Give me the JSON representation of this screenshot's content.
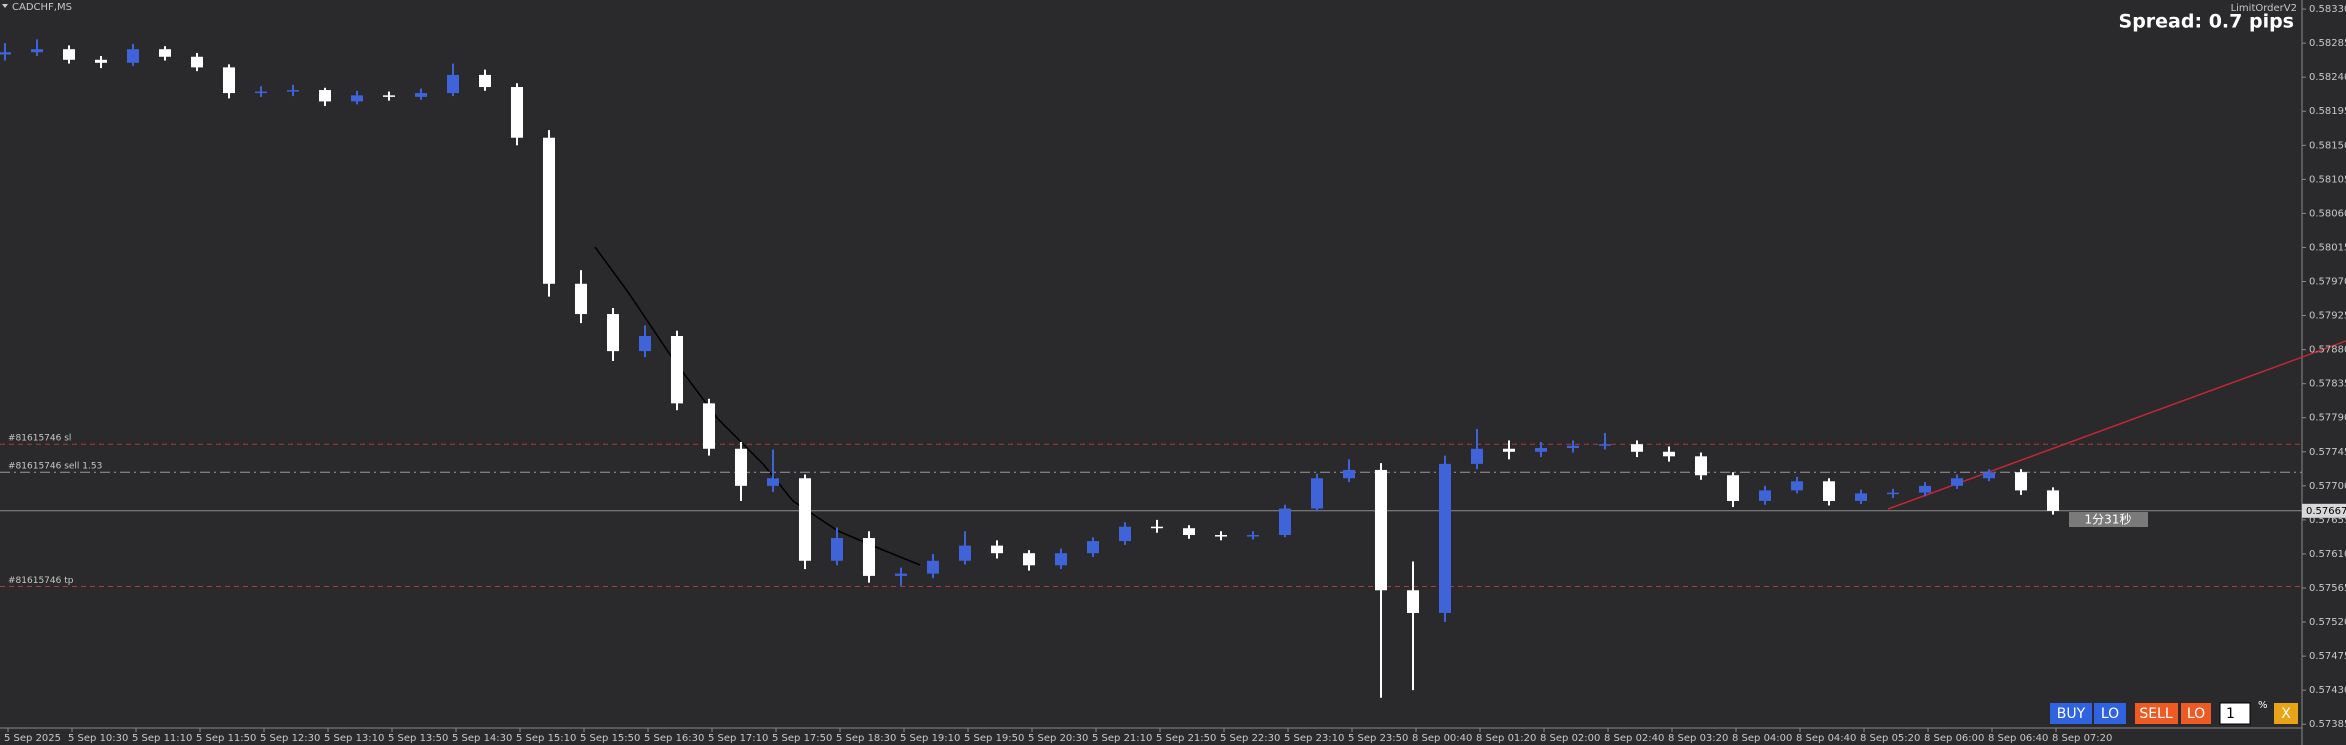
{
  "chart_data": {
    "type": "candlestick",
    "symbol": "CADCHF,MS",
    "candles": [
      [
        0.5827,
        0.58285,
        0.58262,
        0.58273
      ],
      [
        0.58273,
        0.5829,
        0.58268,
        0.58277
      ],
      [
        0.58277,
        0.58282,
        0.58258,
        0.58263
      ],
      [
        0.58263,
        0.58268,
        0.58252,
        0.58259
      ],
      [
        0.58259,
        0.58284,
        0.58255,
        0.58277
      ],
      [
        0.58277,
        0.58281,
        0.58262,
        0.58267
      ],
      [
        0.58267,
        0.58272,
        0.58248,
        0.58253
      ],
      [
        0.58253,
        0.58257,
        0.58212,
        0.58219
      ],
      [
        0.58219,
        0.58228,
        0.58214,
        0.58221
      ],
      [
        0.58221,
        0.5823,
        0.58215,
        0.58223
      ],
      [
        0.58223,
        0.58226,
        0.58202,
        0.58208
      ],
      [
        0.58208,
        0.58222,
        0.58204,
        0.58216
      ],
      [
        0.58216,
        0.58221,
        0.58209,
        0.58214
      ],
      [
        0.58214,
        0.58225,
        0.5821,
        0.58219
      ],
      [
        0.58219,
        0.58258,
        0.58215,
        0.58243
      ],
      [
        0.58243,
        0.5825,
        0.58222,
        0.58227
      ],
      [
        0.58227,
        0.58232,
        0.5815,
        0.5816
      ],
      [
        0.5816,
        0.5817,
        0.5795,
        0.57967
      ],
      [
        0.57967,
        0.57985,
        0.57915,
        0.57927
      ],
      [
        0.57927,
        0.57935,
        0.57865,
        0.57878
      ],
      [
        0.57878,
        0.57912,
        0.5787,
        0.57898
      ],
      [
        0.57898,
        0.57905,
        0.578,
        0.57809
      ],
      [
        0.57809,
        0.57815,
        0.5774,
        0.57749
      ],
      [
        0.57749,
        0.57758,
        0.5768,
        0.577
      ],
      [
        0.577,
        0.57748,
        0.57692,
        0.5771
      ],
      [
        0.5771,
        0.57715,
        0.5759,
        0.57601
      ],
      [
        0.57601,
        0.57645,
        0.57595,
        0.57631
      ],
      [
        0.57631,
        0.5764,
        0.57572,
        0.57581
      ],
      [
        0.57581,
        0.57592,
        0.57568,
        0.57584
      ],
      [
        0.57584,
        0.5761,
        0.57578,
        0.57601
      ],
      [
        0.57601,
        0.5764,
        0.57596,
        0.57621
      ],
      [
        0.57621,
        0.57628,
        0.57604,
        0.57611
      ],
      [
        0.57611,
        0.57615,
        0.57588,
        0.57595
      ],
      [
        0.57595,
        0.57617,
        0.5759,
        0.57611
      ],
      [
        0.57611,
        0.57632,
        0.57606,
        0.57627
      ],
      [
        0.57627,
        0.57652,
        0.57622,
        0.57646
      ],
      [
        0.57646,
        0.57655,
        0.57638,
        0.57644
      ],
      [
        0.57644,
        0.57648,
        0.5763,
        0.57635
      ],
      [
        0.57635,
        0.5764,
        0.57628,
        0.57633
      ],
      [
        0.57633,
        0.5764,
        0.57629,
        0.57635
      ],
      [
        0.57635,
        0.57675,
        0.57632,
        0.5767
      ],
      [
        0.5767,
        0.57716,
        0.57666,
        0.5771
      ],
      [
        0.5771,
        0.57735,
        0.57705,
        0.57721
      ],
      [
        0.57721,
        0.5773,
        0.5742,
        0.57562
      ],
      [
        0.57562,
        0.576,
        0.5743,
        0.57532
      ],
      [
        0.57532,
        0.5774,
        0.5752,
        0.57729
      ],
      [
        0.57729,
        0.57775,
        0.57722,
        0.57749
      ],
      [
        0.57749,
        0.5776,
        0.57735,
        0.57745
      ],
      [
        0.57745,
        0.57758,
        0.57738,
        0.5775
      ],
      [
        0.5775,
        0.5776,
        0.57744,
        0.57753
      ],
      [
        0.57753,
        0.5777,
        0.57748,
        0.57755
      ],
      [
        0.57755,
        0.5776,
        0.57738,
        0.57745
      ],
      [
        0.57745,
        0.57752,
        0.57732,
        0.57739
      ],
      [
        0.57739,
        0.57744,
        0.57708,
        0.57714
      ],
      [
        0.57714,
        0.57718,
        0.57672,
        0.5768
      ],
      [
        0.5768,
        0.577,
        0.57675,
        0.57694
      ],
      [
        0.57694,
        0.57712,
        0.5769,
        0.57706
      ],
      [
        0.57706,
        0.5771,
        0.57674,
        0.5768
      ],
      [
        0.5768,
        0.57695,
        0.57676,
        0.5769
      ],
      [
        0.5769,
        0.57696,
        0.57684,
        0.57691
      ],
      [
        0.57691,
        0.57705,
        0.57686,
        0.577
      ],
      [
        0.577,
        0.57715,
        0.57696,
        0.5771
      ],
      [
        0.5771,
        0.57722,
        0.57706,
        0.57718
      ],
      [
        0.57718,
        0.57722,
        0.57688,
        0.57694
      ],
      [
        0.57694,
        0.57698,
        0.57662,
        0.57667
      ]
    ],
    "bull_color": "#3f63d8",
    "bear_color": "#ffffff",
    "x_labels": [
      "5 Sep 2025",
      "5 Sep 10:30",
      "5 Sep 11:10",
      "5 Sep 11:50",
      "5 Sep 12:30",
      "5 Sep 13:10",
      "5 Sep 13:50",
      "5 Sep 14:30",
      "5 Sep 15:10",
      "5 Sep 15:50",
      "5 Sep 16:30",
      "5 Sep 17:10",
      "5 Sep 17:50",
      "5 Sep 18:30",
      "5 Sep 19:10",
      "5 Sep 19:50",
      "5 Sep 20:30",
      "5 Sep 21:10",
      "5 Sep 21:50",
      "5 Sep 22:30",
      "5 Sep 23:10",
      "5 Sep 23:50",
      "8 Sep 00:40",
      "8 Sep 01:20",
      "8 Sep 02:00",
      "8 Sep 02:40",
      "8 Sep 03:20",
      "8 Sep 04:00",
      "8 Sep 04:40",
      "8 Sep 05:20",
      "8 Sep 06:00",
      "8 Sep 06:40",
      "8 Sep 07:20"
    ],
    "ylim": [
      0.5738,
      0.58342
    ],
    "yticks": [
      {
        "value": 0.5833,
        "label": "0.58330"
      },
      {
        "value": 0.58285,
        "label": "0.58285"
      },
      {
        "value": 0.5824,
        "label": "0.58240"
      },
      {
        "value": 0.58195,
        "label": "0.58195"
      },
      {
        "value": 0.5815,
        "label": "0.58150"
      },
      {
        "value": 0.58105,
        "label": "0.58105"
      },
      {
        "value": 0.5806,
        "label": "0.58060"
      },
      {
        "value": 0.58015,
        "label": "0.58015"
      },
      {
        "value": 0.5797,
        "label": "0.57970"
      },
      {
        "value": 0.57925,
        "label": "0.57925"
      },
      {
        "value": 0.5788,
        "label": "0.57880"
      },
      {
        "value": 0.57835,
        "label": "0.57835"
      },
      {
        "value": 0.5779,
        "label": "0.57790"
      },
      {
        "value": 0.57745,
        "label": "0.57745"
      },
      {
        "value": 0.577,
        "label": "0.57700"
      },
      {
        "value": 0.57655,
        "label": "0.57655"
      },
      {
        "value": 0.5761,
        "label": "0.57610"
      },
      {
        "value": 0.57565,
        "label": "0.57565"
      },
      {
        "value": 0.5752,
        "label": "0.57520"
      },
      {
        "value": 0.57475,
        "label": "0.57475"
      },
      {
        "value": 0.5743,
        "label": "0.57430"
      },
      {
        "value": 0.57385,
        "label": "0.57385"
      }
    ],
    "levels": [
      {
        "label": "#81615746 sl",
        "value": 0.57755,
        "color": "#b03a3a"
      },
      {
        "label": "#81615746 sell 1.53",
        "value": 0.57718,
        "color": "#9a9a9a"
      },
      {
        "label": "#81615746 tp",
        "value": 0.57567,
        "color": "#b03a3a"
      }
    ],
    "current_price": {
      "value": 0.57667,
      "label": "0.57667"
    }
  },
  "ui": {
    "indicator": "LimitOrderV2",
    "spread": "Spread: 0.7 pips",
    "countdown": "1分31秒",
    "buy": "BUY",
    "buy_lo": "LO",
    "sell": "SELL",
    "sell_lo": "LO",
    "lot": "1",
    "percent": "%",
    "close": "X"
  }
}
